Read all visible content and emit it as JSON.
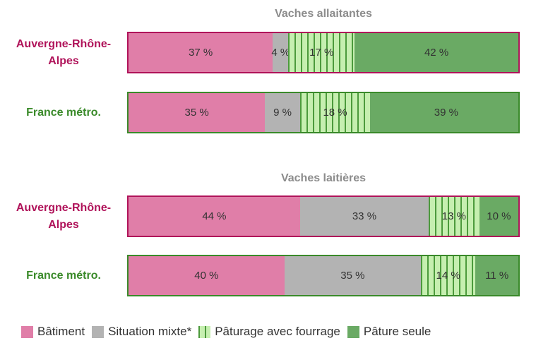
{
  "chart_data": [
    {
      "type": "stacked-bar-horizontal",
      "title": "Vaches allaitantes",
      "categories": [
        "Auvergne-Rhône-Alpes",
        "France métro."
      ],
      "category_colors": [
        "#b0135a",
        "#3a8a2a"
      ],
      "xlim": [
        0,
        100
      ],
      "series": [
        {
          "name": "Bâtiment",
          "color": "#e07ea8",
          "values": [
            37,
            35
          ],
          "value_labels": [
            "37 %",
            "35 %"
          ]
        },
        {
          "name": "Situation mixte*",
          "color": "#b3b3b3",
          "values": [
            4,
            9
          ],
          "value_labels": [
            "4 %",
            "9 %"
          ]
        },
        {
          "name": "Pâturage avec fourrage",
          "color": "#c6efb0",
          "pattern": "vertical-lines",
          "pattern_color": "#4c9a3c",
          "values": [
            17,
            18
          ],
          "value_labels": [
            "17 %",
            "18 %"
          ]
        },
        {
          "name": "Pâture seule",
          "color": "#6aaa64",
          "values": [
            42,
            39
          ],
          "value_labels": [
            "42 %",
            "39 %"
          ]
        }
      ]
    },
    {
      "type": "stacked-bar-horizontal",
      "title": "Vaches laitières",
      "categories": [
        "Auvergne-Rhône-Alpes",
        "France métro."
      ],
      "category_colors": [
        "#b0135a",
        "#3a8a2a"
      ],
      "xlim": [
        0,
        100
      ],
      "series": [
        {
          "name": "Bâtiment",
          "color": "#e07ea8",
          "values": [
            44,
            40
          ],
          "value_labels": [
            "44 %",
            "40 %"
          ]
        },
        {
          "name": "Situation mixte*",
          "color": "#b3b3b3",
          "values": [
            33,
            35
          ],
          "value_labels": [
            "33 %",
            "35 %"
          ]
        },
        {
          "name": "Pâturage avec fourrage",
          "color": "#c6efb0",
          "pattern": "vertical-lines",
          "pattern_color": "#4c9a3c",
          "values": [
            13,
            14
          ],
          "value_labels": [
            "13 %",
            "14 %"
          ]
        },
        {
          "name": "Pâture seule",
          "color": "#6aaa64",
          "values": [
            10,
            11
          ],
          "value_labels": [
            "10 %",
            "11 %"
          ]
        }
      ]
    }
  ]
}
